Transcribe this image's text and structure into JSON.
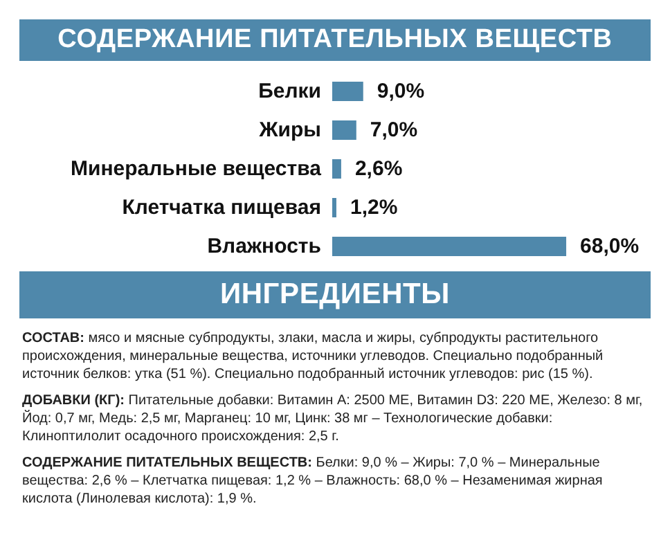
{
  "chart_data": {
    "type": "bar",
    "orientation": "horizontal",
    "title": "СОДЕРЖАНИЕ ПИТАТЕЛЬНЫХ ВЕЩЕСТВ",
    "categories": [
      "Белки",
      "Жиры",
      "Минеральные вещества",
      "Клетчатка пищевая",
      "Влажность"
    ],
    "values": [
      9.0,
      7.0,
      2.6,
      1.2,
      68.0
    ],
    "value_labels": [
      "9,0%",
      "7,0%",
      "2,6%",
      "1,2%",
      "68,0%"
    ],
    "color": "#4f88ab",
    "annotations": [
      "ИНГРЕДИЕНТЫ",
      "СОСТАВ: мясо и мясные субпродукты, злаки, масла и жиры, субпродукты растительного происхождения, минеральные вещества, источники углеводов. Специально подобранный источник белков: утка (51 %). Специально подобранный источник углеводов: рис (15 %).",
      "ДОБАВКИ (КГ): Питательные добавки: Витамин А: 2500 МЕ, Витамин D3: 220 МЕ, Железо: 8 мг, Йод: 0,7 мг, Медь: 2,5 мг, Марганец: 10 мг, Цинк: 38 мг – Технологические добавки: Клиноптилолит осадочного происхождения: 2,5 г.",
      "СОДЕРЖАНИЕ ПИТАТЕЛЬНЫХ ВЕЩЕСТВ: Белки: 9,0 % – Жиры: 7,0 % – Минеральные вещества: 2,6 % – Клетчатка пищевая: 1,2 % – Влажность: 68,0 % – Незаменимая жирная кислота (Линолевая кислота): 1,9 %."
    ]
  }
}
